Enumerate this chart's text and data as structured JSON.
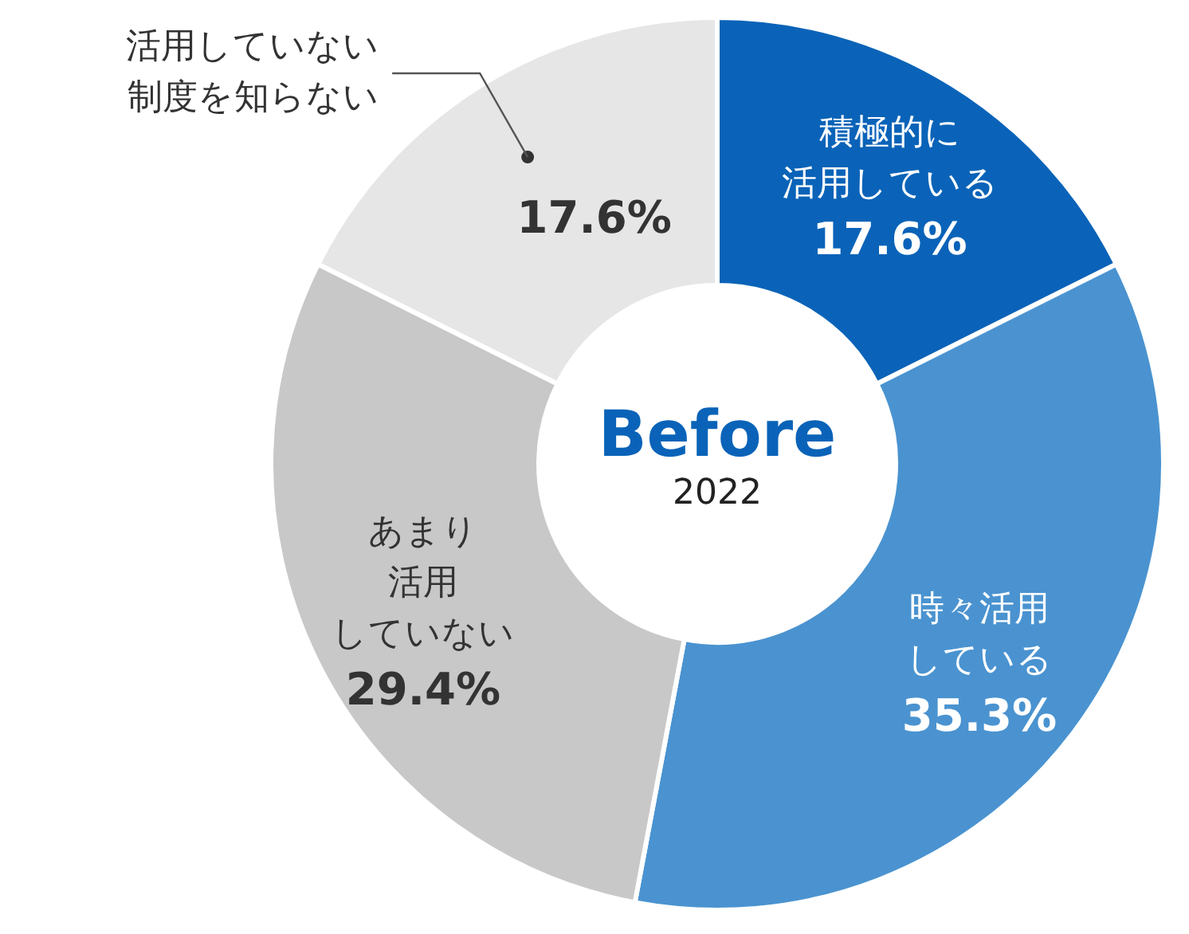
{
  "chart_data": {
    "type": "donut",
    "title": "Before",
    "subtitle": "2022",
    "categories": [
      "積極的に活用している",
      "時々活用している",
      "あまり活用していない",
      "活用していない制度を知らない"
    ],
    "values": [
      17.6,
      35.3,
      29.4,
      17.6
    ],
    "value_labels": [
      "17.6%",
      "35.3%",
      "29.4%",
      "17.6%"
    ],
    "colors": [
      "#0a63b8",
      "#4a93d0",
      "#c8c8c8",
      "#e6e6e6"
    ]
  }
}
